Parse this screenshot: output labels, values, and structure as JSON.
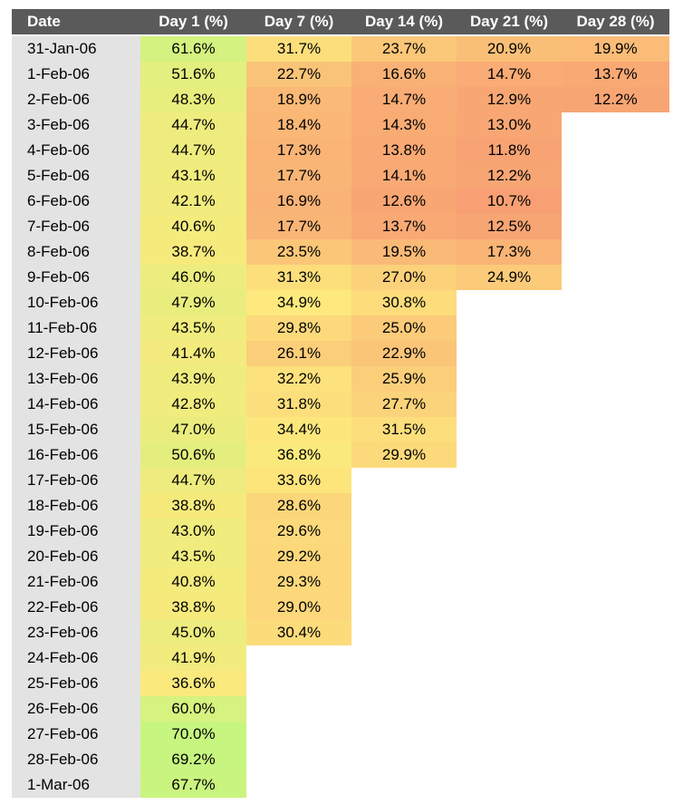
{
  "chart_data": {
    "type": "heatmap",
    "columns": [
      "Date",
      "Day 1 (%)",
      "Day 7 (%)",
      "Day 14 (%)",
      "Day 21 (%)",
      "Day 28 (%)"
    ],
    "rows": [
      {
        "date": "31-Jan-06",
        "values": [
          "61.6%",
          "31.7%",
          "23.7%",
          "20.9%",
          "19.9%"
        ]
      },
      {
        "date": "1-Feb-06",
        "values": [
          "51.6%",
          "22.7%",
          "16.6%",
          "14.7%",
          "13.7%"
        ]
      },
      {
        "date": "2-Feb-06",
        "values": [
          "48.3%",
          "18.9%",
          "14.7%",
          "12.9%",
          "12.2%"
        ]
      },
      {
        "date": "3-Feb-06",
        "values": [
          "44.7%",
          "18.4%",
          "14.3%",
          "13.0%"
        ]
      },
      {
        "date": "4-Feb-06",
        "values": [
          "44.7%",
          "17.3%",
          "13.8%",
          "11.8%"
        ]
      },
      {
        "date": "5-Feb-06",
        "values": [
          "43.1%",
          "17.7%",
          "14.1%",
          "12.2%"
        ]
      },
      {
        "date": "6-Feb-06",
        "values": [
          "42.1%",
          "16.9%",
          "12.6%",
          "10.7%"
        ]
      },
      {
        "date": "7-Feb-06",
        "values": [
          "40.6%",
          "17.7%",
          "13.7%",
          "12.5%"
        ]
      },
      {
        "date": "8-Feb-06",
        "values": [
          "38.7%",
          "23.5%",
          "19.5%",
          "17.3%"
        ]
      },
      {
        "date": "9-Feb-06",
        "values": [
          "46.0%",
          "31.3%",
          "27.0%",
          "24.9%"
        ]
      },
      {
        "date": "10-Feb-06",
        "values": [
          "47.9%",
          "34.9%",
          "30.8%"
        ]
      },
      {
        "date": "11-Feb-06",
        "values": [
          "43.5%",
          "29.8%",
          "25.0%"
        ]
      },
      {
        "date": "12-Feb-06",
        "values": [
          "41.4%",
          "26.1%",
          "22.9%"
        ]
      },
      {
        "date": "13-Feb-06",
        "values": [
          "43.9%",
          "32.2%",
          "25.9%"
        ]
      },
      {
        "date": "14-Feb-06",
        "values": [
          "42.8%",
          "31.8%",
          "27.7%"
        ]
      },
      {
        "date": "15-Feb-06",
        "values": [
          "47.0%",
          "34.4%",
          "31.5%"
        ]
      },
      {
        "date": "16-Feb-06",
        "values": [
          "50.6%",
          "36.8%",
          "29.9%"
        ]
      },
      {
        "date": "17-Feb-06",
        "values": [
          "44.7%",
          "33.6%"
        ]
      },
      {
        "date": "18-Feb-06",
        "values": [
          "38.8%",
          "28.6%"
        ]
      },
      {
        "date": "19-Feb-06",
        "values": [
          "43.0%",
          "29.6%"
        ]
      },
      {
        "date": "20-Feb-06",
        "values": [
          "43.5%",
          "29.2%"
        ]
      },
      {
        "date": "21-Feb-06",
        "values": [
          "40.8%",
          "29.3%"
        ]
      },
      {
        "date": "22-Feb-06",
        "values": [
          "38.8%",
          "29.0%"
        ]
      },
      {
        "date": "23-Feb-06",
        "values": [
          "45.0%",
          "30.4%"
        ]
      },
      {
        "date": "24-Feb-06",
        "values": [
          "41.9%"
        ]
      },
      {
        "date": "25-Feb-06",
        "values": [
          "36.6%"
        ]
      },
      {
        "date": "26-Feb-06",
        "values": [
          "60.0%"
        ]
      },
      {
        "date": "27-Feb-06",
        "values": [
          "70.0%"
        ]
      },
      {
        "date": "28-Feb-06",
        "values": [
          "69.2%"
        ]
      },
      {
        "date": "1-Mar-06",
        "values": [
          "67.7%"
        ]
      }
    ],
    "color_scale": {
      "low": "#f8a073",
      "mid": "#fde97d",
      "high": "#c6f580"
    }
  }
}
